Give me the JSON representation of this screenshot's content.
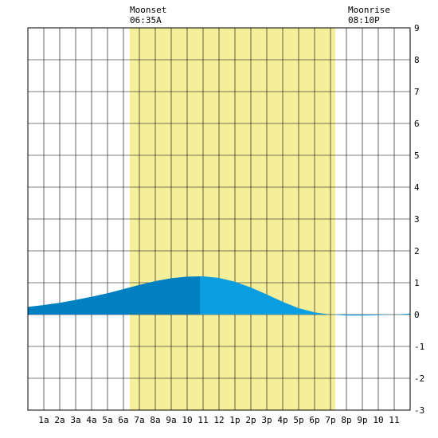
{
  "chart_data": {
    "type": "area",
    "x_unit": "hour of day",
    "y_unit": "ft",
    "ylim": [
      -3,
      9
    ],
    "xlim": [
      0,
      24
    ],
    "y_ticks": [
      9,
      8,
      7,
      6,
      5,
      4,
      3,
      2,
      1,
      0,
      -1,
      -2,
      -3
    ],
    "x_tick_labels": [
      "1a",
      "2a",
      "3a",
      "4a",
      "5a",
      "6a",
      "7a",
      "8a",
      "9a",
      "10",
      "11",
      "12",
      "1p",
      "2p",
      "3p",
      "4p",
      "5p",
      "6p",
      "7p",
      "8p",
      "9p",
      "10",
      "11"
    ],
    "grid": true,
    "moon_up_band": {
      "start_hour": 6.4,
      "end_hour": 19.3,
      "color": "#f5ee9a"
    },
    "moonset": {
      "label": "Moonset",
      "time": "06:35A"
    },
    "moonrise": {
      "label": "Moonrise",
      "time": "08:10P"
    },
    "series": [
      {
        "x": [
          0,
          1,
          2,
          3,
          4,
          5,
          6,
          7,
          8,
          9,
          10,
          10.8,
          11,
          12,
          13,
          14,
          15,
          16,
          17,
          18,
          19,
          20,
          21,
          22,
          23,
          24
        ],
        "y": [
          0.24,
          0.3,
          0.37,
          0.46,
          0.56,
          0.67,
          0.8,
          0.93,
          1.05,
          1.14,
          1.19,
          1.2,
          1.2,
          1.15,
          1.03,
          0.85,
          0.63,
          0.4,
          0.2,
          0.07,
          0.0,
          -0.03,
          -0.03,
          -0.02,
          0.0,
          0.03
        ]
      }
    ],
    "rising_until_hour": 10.8,
    "colors": {
      "rising": "#0080c0",
      "falling": "#0a9ee0",
      "grid": "#000000",
      "background": "#ffffff"
    }
  }
}
